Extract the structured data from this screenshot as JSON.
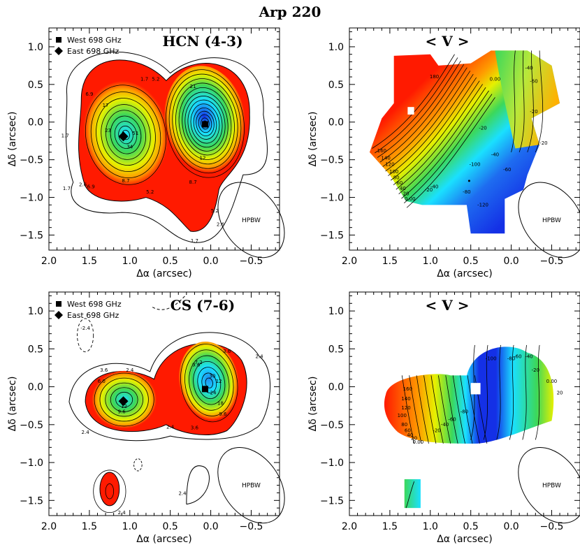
{
  "figure_title": "Arp 220",
  "colors": {
    "red": "#ff1a00",
    "orange": "#ff9a00",
    "yellow": "#e6f000",
    "green": "#3cd85a",
    "cyan": "#1ae0ff",
    "blue": "#1430e6",
    "line": "#000000"
  },
  "legend_items": [
    {
      "label": "West 698 GHz",
      "marker": "square"
    },
    {
      "label": "East 698 GHz",
      "marker": "diamond"
    }
  ],
  "beam_label": "HPBW",
  "chart_data": [
    {
      "type": "contour",
      "title": "HCN (4-3)",
      "xlabel": "Δα (arcsec)",
      "ylabel": "Δδ (arcsec)",
      "xlim": [
        2.0,
        -0.85
      ],
      "ylim": [
        -1.7,
        1.25
      ],
      "xticks": [
        {
          "v": 2.0,
          "t": "2.0"
        },
        {
          "v": 1.5,
          "t": "1.5"
        },
        {
          "v": 1.0,
          "t": "1.0"
        },
        {
          "v": 0.5,
          "t": "0.5"
        },
        {
          "v": 0.0,
          "t": "0.0"
        },
        {
          "v": -0.5,
          "t": "−0.5"
        }
      ],
      "yticks": [
        {
          "v": 1.0,
          "t": "1.0"
        },
        {
          "v": 0.5,
          "t": "0.5"
        },
        {
          "v": 0.0,
          "t": "0.0"
        },
        {
          "v": -0.5,
          "t": "−0.5"
        },
        {
          "v": -1.0,
          "t": "−1.0"
        },
        {
          "v": -1.5,
          "t": "−1.5"
        }
      ],
      "west_peak": [
        0.07,
        -0.03
      ],
      "east_peak": [
        1.08,
        -0.19
      ],
      "contour_labels": [
        {
          "x": 1.8,
          "y": -0.2,
          "t": "1.7"
        },
        {
          "x": 0.82,
          "y": 0.55,
          "t": "1.7"
        },
        {
          "x": 1.78,
          "y": -0.9,
          "t": "1.7"
        },
        {
          "x": 0.2,
          "y": -1.6,
          "t": "1.7"
        },
        {
          "x": 1.58,
          "y": -0.85,
          "t": "2.6"
        },
        {
          "x": -0.12,
          "y": -1.38,
          "t": "2.6"
        },
        {
          "x": 0.68,
          "y": 0.55,
          "t": "5.2"
        },
        {
          "x": 0.75,
          "y": -0.95,
          "t": "5.2"
        },
        {
          "x": -0.05,
          "y": -1.2,
          "t": "5.2"
        },
        {
          "x": 1.5,
          "y": 0.35,
          "t": "6.9"
        },
        {
          "x": 1.48,
          "y": -0.88,
          "t": "6.9"
        },
        {
          "x": 1.05,
          "y": -0.8,
          "t": "8.7"
        },
        {
          "x": 0.22,
          "y": -0.82,
          "t": "8.7"
        },
        {
          "x": 1.3,
          "y": 0.2,
          "t": "17"
        },
        {
          "x": 1.27,
          "y": -0.13,
          "t": "23"
        },
        {
          "x": 1.0,
          "y": -0.35,
          "t": "34"
        },
        {
          "x": 0.93,
          "y": -0.17,
          "t": "51"
        },
        {
          "x": 0.22,
          "y": 0.45,
          "t": "21"
        },
        {
          "x": 0.1,
          "y": -0.5,
          "t": "12"
        }
      ],
      "beam": {
        "x": -0.5,
        "y": -1.3,
        "bmaj": 0.55,
        "bmin": 0.35,
        "pa_deg": -35
      }
    },
    {
      "type": "velocity_map",
      "title": "< V >",
      "xlabel": "Δα (arcsec)",
      "ylabel": "Δδ (arcsec)",
      "xlim": [
        2.0,
        -0.85
      ],
      "ylim": [
        -1.7,
        1.25
      ],
      "xticks": [
        {
          "v": 2.0,
          "t": "2.0"
        },
        {
          "v": 1.5,
          "t": "1.5"
        },
        {
          "v": 1.0,
          "t": "1.0"
        },
        {
          "v": 0.5,
          "t": "0.5"
        },
        {
          "v": 0.0,
          "t": "0.0"
        },
        {
          "v": -0.5,
          "t": "−0.5"
        }
      ],
      "yticks": [
        {
          "v": 1.0,
          "t": "1.0"
        },
        {
          "v": 0.5,
          "t": "0.5"
        },
        {
          "v": 0.0,
          "t": "0.0"
        },
        {
          "v": -0.5,
          "t": "−0.5"
        },
        {
          "v": -1.0,
          "t": "−1.0"
        },
        {
          "v": -1.5,
          "t": "−1.5"
        }
      ],
      "contour_labels": [
        {
          "x": 0.95,
          "y": 0.58,
          "t": "180"
        },
        {
          "x": 1.6,
          "y": -0.4,
          "t": "160"
        },
        {
          "x": 1.55,
          "y": -0.5,
          "t": "140"
        },
        {
          "x": 1.5,
          "y": -0.58,
          "t": "120"
        },
        {
          "x": 1.45,
          "y": -0.68,
          "t": "100"
        },
        {
          "x": 1.42,
          "y": -0.76,
          "t": "80"
        },
        {
          "x": 1.38,
          "y": -0.83,
          "t": "60"
        },
        {
          "x": 1.34,
          "y": -0.9,
          "t": "40"
        },
        {
          "x": 1.3,
          "y": -0.97,
          "t": "20"
        },
        {
          "x": 1.25,
          "y": -1.04,
          "t": "0.00"
        },
        {
          "x": 0.2,
          "y": 0.55,
          "t": "0.00"
        },
        {
          "x": 0.35,
          "y": -0.1,
          "t": "-20"
        },
        {
          "x": 0.2,
          "y": -0.45,
          "t": "-40"
        },
        {
          "x": 0.05,
          "y": -0.65,
          "t": "-60"
        },
        {
          "x": 0.55,
          "y": -0.95,
          "t": "-80"
        },
        {
          "x": 0.45,
          "y": -0.58,
          "t": "-100"
        },
        {
          "x": 0.35,
          "y": -1.12,
          "t": "-120"
        },
        {
          "x": 0.95,
          "y": -0.88,
          "t": "-40"
        },
        {
          "x": 1.02,
          "y": -0.92,
          "t": "-20"
        },
        {
          "x": -0.28,
          "y": 0.52,
          "t": "-60"
        },
        {
          "x": -0.22,
          "y": 0.7,
          "t": "-40"
        },
        {
          "x": -0.4,
          "y": -0.3,
          "t": "-20"
        },
        {
          "x": -0.28,
          "y": 0.12,
          "t": "-20"
        }
      ],
      "beam": {
        "x": -0.5,
        "y": -1.3,
        "bmaj": 0.55,
        "bmin": 0.35,
        "pa_deg": -35
      }
    },
    {
      "type": "contour",
      "title": "CS (7-6)",
      "xlabel": "Δα (arcsec)",
      "ylabel": "Δδ (arcsec)",
      "xlim": [
        2.0,
        -0.85
      ],
      "ylim": [
        -1.7,
        1.25
      ],
      "xticks": [
        {
          "v": 2.0,
          "t": "2.0"
        },
        {
          "v": 1.5,
          "t": "1.5"
        },
        {
          "v": 1.0,
          "t": "1.0"
        },
        {
          "v": 0.5,
          "t": "0.5"
        },
        {
          "v": 0.0,
          "t": "0.0"
        },
        {
          "v": -0.5,
          "t": "−0.5"
        }
      ],
      "yticks": [
        {
          "v": 1.0,
          "t": "1.0"
        },
        {
          "v": 0.5,
          "t": "0.5"
        },
        {
          "v": 0.0,
          "t": "0.0"
        },
        {
          "v": -0.5,
          "t": "−0.5"
        },
        {
          "v": -1.0,
          "t": "−1.0"
        },
        {
          "v": -1.5,
          "t": "−1.5"
        }
      ],
      "west_peak": [
        0.07,
        -0.03
      ],
      "east_peak": [
        1.08,
        -0.19
      ],
      "contour_labels": [
        {
          "x": 1.0,
          "y": 0.2,
          "t": "2.4"
        },
        {
          "x": -0.6,
          "y": 0.38,
          "t": "2.4"
        },
        {
          "x": 1.55,
          "y": -0.62,
          "t": "2.4"
        },
        {
          "x": 0.5,
          "y": -0.55,
          "t": "2.4"
        },
        {
          "x": 0.35,
          "y": -1.43,
          "t": "2.4"
        },
        {
          "x": 1.1,
          "y": -1.68,
          "t": "2.4"
        },
        {
          "x": 1.55,
          "y": 0.75,
          "t": "-2.4"
        },
        {
          "x": 1.32,
          "y": 0.2,
          "t": "3.6"
        },
        {
          "x": -0.2,
          "y": 0.45,
          "t": "3.6"
        },
        {
          "x": 0.2,
          "y": -0.56,
          "t": "3.6"
        },
        {
          "x": 1.35,
          "y": 0.05,
          "t": "6.0"
        },
        {
          "x": 0.15,
          "y": 0.3,
          "t": "7.2"
        },
        {
          "x": 0.18,
          "y": 0.27,
          "t": "9.6"
        },
        {
          "x": 1.1,
          "y": -0.35,
          "t": "9.6"
        },
        {
          "x": -0.15,
          "y": -0.38,
          "t": "9.6"
        },
        {
          "x": 1.07,
          "y": -0.28,
          "t": "12"
        },
        {
          "x": -0.1,
          "y": 0.05,
          "t": "12"
        },
        {
          "x": -0.12,
          "y": -0.24,
          "t": "18"
        },
        {
          "x": -0.03,
          "y": -0.1,
          "t": "24"
        },
        {
          "x": -0.02,
          "y": 0.12,
          "t": "30"
        }
      ],
      "beam": {
        "x": -0.5,
        "y": -1.3,
        "bmaj": 0.55,
        "bmin": 0.35,
        "pa_deg": -35
      }
    },
    {
      "type": "velocity_map",
      "title": "< V >",
      "xlabel": "Δα (arcsec)",
      "ylabel": "Δδ (arcsec)",
      "xlim": [
        2.0,
        -0.85
      ],
      "ylim": [
        -1.7,
        1.25
      ],
      "xticks": [
        {
          "v": 2.0,
          "t": "2.0"
        },
        {
          "v": 1.5,
          "t": "1.5"
        },
        {
          "v": 1.0,
          "t": "1.0"
        },
        {
          "v": 0.5,
          "t": "0.5"
        },
        {
          "v": 0.0,
          "t": "0.0"
        },
        {
          "v": -0.5,
          "t": "−0.5"
        }
      ],
      "yticks": [
        {
          "v": 1.0,
          "t": "1.0"
        },
        {
          "v": 0.5,
          "t": "0.5"
        },
        {
          "v": 0.0,
          "t": "0.0"
        },
        {
          "v": -0.5,
          "t": "−0.5"
        },
        {
          "v": -1.0,
          "t": "−1.0"
        },
        {
          "v": -1.5,
          "t": "−1.5"
        }
      ],
      "contour_labels": [
        {
          "x": 1.28,
          "y": -0.05,
          "t": "160"
        },
        {
          "x": 1.3,
          "y": -0.18,
          "t": "140"
        },
        {
          "x": 1.3,
          "y": -0.3,
          "t": "120"
        },
        {
          "x": 1.35,
          "y": -0.4,
          "t": "100"
        },
        {
          "x": 1.32,
          "y": -0.52,
          "t": "80"
        },
        {
          "x": 1.28,
          "y": -0.6,
          "t": "60"
        },
        {
          "x": 1.25,
          "y": -0.66,
          "t": "40"
        },
        {
          "x": 1.2,
          "y": -0.7,
          "t": "20"
        },
        {
          "x": 1.15,
          "y": -0.75,
          "t": "0.00"
        },
        {
          "x": 0.92,
          "y": -0.6,
          "t": "-20"
        },
        {
          "x": 0.82,
          "y": -0.52,
          "t": "-40"
        },
        {
          "x": 0.73,
          "y": -0.45,
          "t": "-60"
        },
        {
          "x": 0.58,
          "y": -0.35,
          "t": "-80"
        },
        {
          "x": 0.25,
          "y": 0.35,
          "t": "-100"
        },
        {
          "x": 0.0,
          "y": 0.35,
          "t": "-80"
        },
        {
          "x": -0.08,
          "y": 0.38,
          "t": "-60"
        },
        {
          "x": -0.22,
          "y": 0.38,
          "t": "-40"
        },
        {
          "x": -0.3,
          "y": 0.2,
          "t": "-20"
        },
        {
          "x": -0.5,
          "y": 0.05,
          "t": "0.00"
        },
        {
          "x": -0.6,
          "y": -0.1,
          "t": "20"
        }
      ],
      "beam": {
        "x": -0.5,
        "y": -1.3,
        "bmaj": 0.55,
        "bmin": 0.35,
        "pa_deg": -35
      }
    }
  ]
}
